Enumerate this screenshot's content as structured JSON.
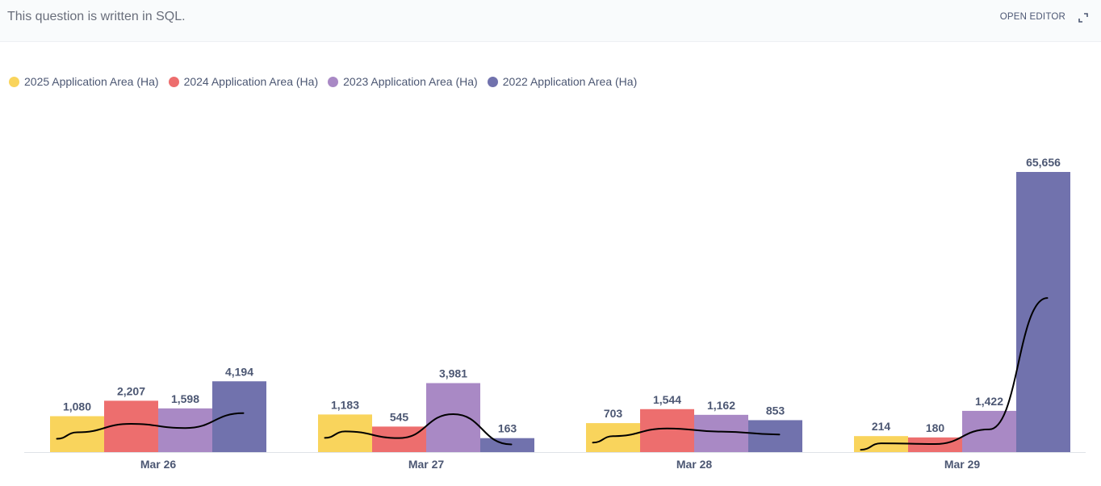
{
  "header": {
    "note": "This question is written in SQL.",
    "open_editor_label": "OPEN EDITOR"
  },
  "chart_data": {
    "type": "bar",
    "title": "",
    "xlabel": "",
    "ylabel": "",
    "categories": [
      "Mar 26",
      "Mar 27",
      "Mar 28",
      "Mar 29"
    ],
    "series": [
      {
        "name": "2025 Application Area (Ha)",
        "color": "#f9d45c",
        "values": [
          1080,
          1183,
          703,
          214
        ],
        "labels": [
          "1,080",
          "1,183",
          "703",
          "214"
        ]
      },
      {
        "name": "2024 Application Area (Ha)",
        "color": "#ed6e6e",
        "values": [
          2207,
          545,
          1544,
          180
        ],
        "labels": [
          "2,207",
          "545",
          "1,544",
          "180"
        ]
      },
      {
        "name": "2023 Application Area (Ha)",
        "color": "#a989c5",
        "values": [
          1598,
          3981,
          1162,
          1422
        ],
        "labels": [
          "1,598",
          "3,981",
          "1,162",
          "1,422"
        ]
      },
      {
        "name": "2022 Application Area (Ha)",
        "color": "#7172ad",
        "values": [
          4194,
          163,
          853,
          65656
        ],
        "labels": [
          "4,194",
          "163",
          "853",
          "65,656"
        ]
      }
    ],
    "scale": "pow",
    "ylim": [
      0,
      65656
    ],
    "grid": false,
    "legend_position": "top-left"
  }
}
